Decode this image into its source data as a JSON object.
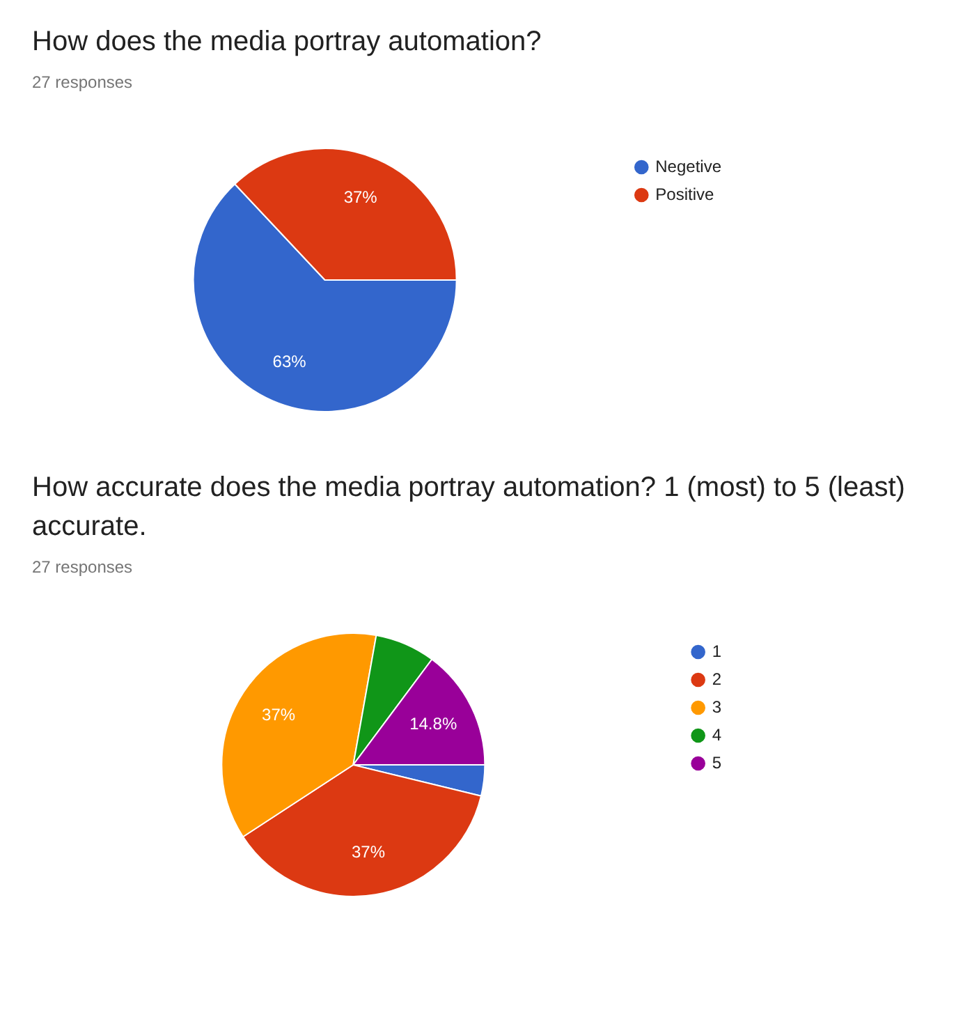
{
  "chart_data": [
    {
      "type": "pie",
      "title": "How does the media portray automation?",
      "subtitle": "27 responses",
      "categories": [
        "Negetive",
        "Positive"
      ],
      "values": [
        63,
        37
      ],
      "colors": [
        "#3366cc",
        "#dc3912"
      ],
      "value_labels": [
        "63%",
        "37%"
      ],
      "legend": "top right"
    },
    {
      "type": "pie",
      "title": "How accurate does the media portray automation? 1 (most) to 5 (least) accurate.",
      "subtitle": "27 responses",
      "categories": [
        "1",
        "2",
        "3",
        "4",
        "5"
      ],
      "values": [
        3.8,
        37,
        37,
        7.4,
        14.8
      ],
      "colors": [
        "#3366cc",
        "#dc3912",
        "#ff9900",
        "#109618",
        "#990099"
      ],
      "value_labels": [
        null,
        "37%",
        "37%",
        null,
        "14.8%"
      ],
      "legend": "top right"
    }
  ]
}
